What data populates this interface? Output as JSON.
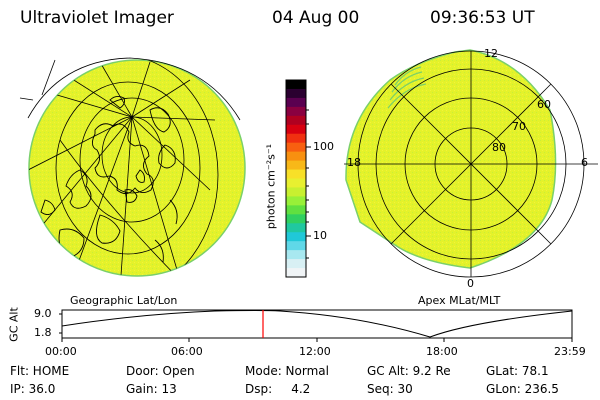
{
  "header": {
    "instrument": "Ultraviolet Imager",
    "date": "04 Aug 00",
    "time": "09:36:53 UT"
  },
  "left_panel": {
    "caption": "Geographic Lat/Lon"
  },
  "right_panel": {
    "caption": "Apex MLat/MLT",
    "mlt_labels": [
      "12",
      "18",
      "6",
      "0"
    ],
    "mlat_labels": [
      "60",
      "70",
      "80"
    ]
  },
  "colorbar": {
    "unit_label": "photon cm⁻²s⁻¹",
    "ticks": [
      "100",
      "10"
    ],
    "scale": "log",
    "colors": [
      "#000000",
      "#2a0030",
      "#5a0050",
      "#8a0040",
      "#b00020",
      "#d80010",
      "#f03010",
      "#f86010",
      "#f89010",
      "#f8b818",
      "#f8e028",
      "#e8f030",
      "#c8f030",
      "#98f038",
      "#60e040",
      "#30d060",
      "#20c8a0",
      "#20c8d8",
      "#60d8e8",
      "#a8e8f0",
      "#d8f0f4",
      "#f0f4f6"
    ]
  },
  "timeline": {
    "axis_label": "GC Alt",
    "y_ticks": [
      "9.0",
      "1.8"
    ],
    "x_ticks": [
      "00:00",
      "06:00",
      "12:00",
      "18:00",
      "23:59"
    ]
  },
  "info_rows": [
    [
      "Flt: HOME",
      "Door: Open",
      "Mode: Normal",
      "GC Alt: 9.2 Re",
      "GLat:  78.1"
    ],
    [
      "IP: 36.0",
      "Gain: 13",
      "Dsp:     4.2",
      "Seq: 30",
      "GLon: 236.5"
    ]
  ],
  "colors": {
    "fill": "#e4f22a",
    "fill_edge": "#7ad06a",
    "marker": "#ff0000"
  }
}
